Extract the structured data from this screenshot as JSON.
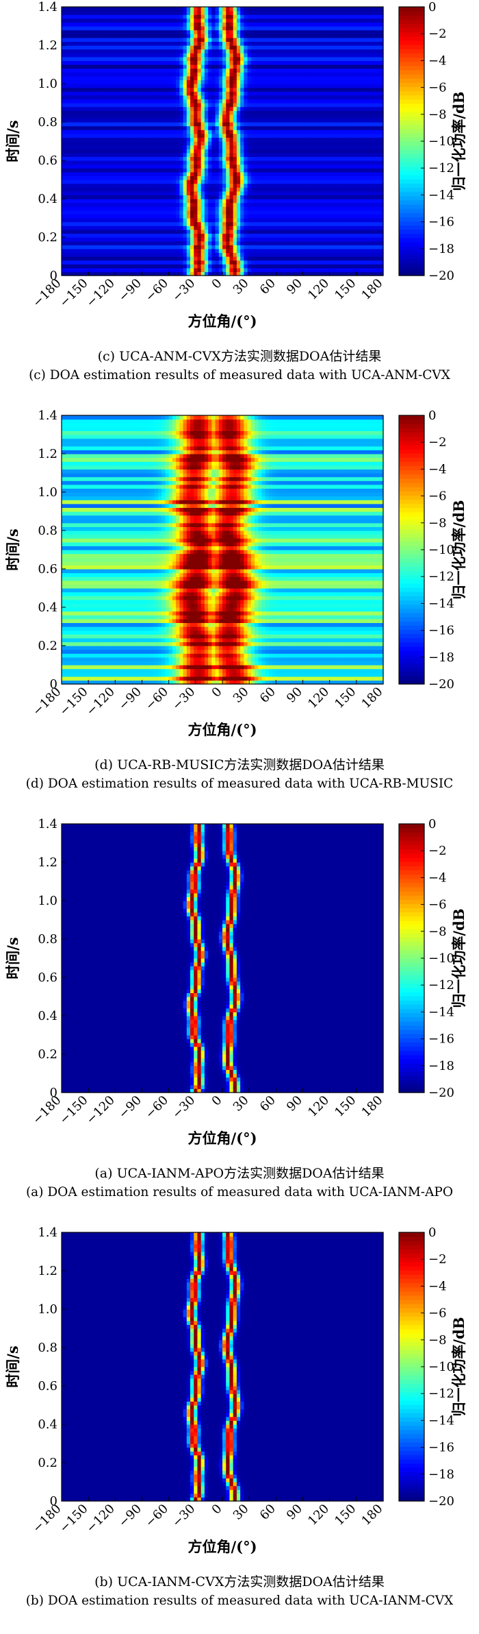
{
  "chart_data": [
    {
      "type": "heatmap",
      "caption_cn": "(c) UCA-ANM-CVX方法实测数据DOA估计结果",
      "caption_en": "(c) DOA estimation results of measured data with UCA-ANM-CVX",
      "xlabel": "方位角/(°)",
      "ylabel": "时间/s",
      "colorbar_label": "归一化功率/dB",
      "xlim": [
        -180,
        180
      ],
      "ylim": [
        0,
        1.4
      ],
      "zlim": [
        -20,
        0
      ],
      "x_ticks": [
        "−180",
        "−150",
        "−120",
        "−90",
        "−60",
        "−30",
        "0",
        "30",
        "60",
        "90",
        "120",
        "150",
        "180"
      ],
      "y_ticks": [
        "0",
        "0.2",
        "0.4",
        "0.6",
        "0.8",
        "1.0",
        "1.2",
        "1.4"
      ],
      "colorbar_ticks": [
        "0",
        "−2",
        "−4",
        "−6",
        "−8",
        "−10",
        "−12",
        "−14",
        "−16",
        "−18",
        "−20"
      ],
      "sources_deg": [
        -30,
        10
      ],
      "background_db": -18,
      "source_width_deg": 9,
      "band_level": 0.45
    },
    {
      "type": "heatmap",
      "caption_cn": "(d) UCA-RB-MUSIC方法实测数据DOA估计结果",
      "caption_en": "(d) DOA estimation results of measured data with UCA-RB-MUSIC",
      "xlabel": "方位角/(°)",
      "ylabel": "时间/s",
      "colorbar_label": "归一化功率/dB",
      "xlim": [
        -180,
        180
      ],
      "ylim": [
        0,
        1.4
      ],
      "zlim": [
        -20,
        0
      ],
      "x_ticks": [
        "−180",
        "−150",
        "−120",
        "−90",
        "−60",
        "−30",
        "0",
        "30",
        "60",
        "90",
        "120",
        "150",
        "180"
      ],
      "y_ticks": [
        "0",
        "0.2",
        "0.4",
        "0.6",
        "0.8",
        "1.0",
        "1.2",
        "1.4"
      ],
      "colorbar_ticks": [
        "0",
        "−2",
        "−4",
        "−6",
        "−8",
        "−10",
        "−12",
        "−14",
        "−16",
        "−18",
        "−20"
      ],
      "sources_deg": [
        -30,
        10
      ],
      "background_db": -12,
      "source_width_deg": 22,
      "band_level": 1.0
    },
    {
      "type": "heatmap",
      "caption_cn": "(a) UCA-IANM-APO方法实测数据DOA估计结果",
      "caption_en": "(a) DOA estimation results of measured data with UCA-IANM-APO",
      "xlabel": "方位角/(°)",
      "ylabel": "时间/s",
      "colorbar_label": "归一化功率/dB",
      "xlim": [
        -180,
        180
      ],
      "ylim": [
        0,
        1.4
      ],
      "zlim": [
        -20,
        0
      ],
      "x_ticks": [
        "−180",
        "−150",
        "−120",
        "−90",
        "−60",
        "−30",
        "0",
        "30",
        "60",
        "90",
        "120",
        "150",
        "180"
      ],
      "y_ticks": [
        "0",
        "0.2",
        "0.4",
        "0.6",
        "0.8",
        "1.0",
        "1.2",
        "1.4"
      ],
      "colorbar_ticks": [
        "0",
        "−2",
        "−4",
        "−6",
        "−8",
        "−10",
        "−12",
        "−14",
        "−16",
        "−18",
        "−20"
      ],
      "sources_deg": [
        -30,
        10
      ],
      "background_db": -19.5,
      "source_width_deg": 5,
      "band_level": 0.0
    },
    {
      "type": "heatmap",
      "caption_cn": "(b) UCA-IANM-CVX方法实测数据DOA估计结果",
      "caption_en": "(b) DOA estimation results of measured data with UCA-IANM-CVX",
      "xlabel": "方位角/(°)",
      "ylabel": "时间/s",
      "colorbar_label": "归一化功率/dB",
      "xlim": [
        -180,
        180
      ],
      "ylim": [
        0,
        1.4
      ],
      "zlim": [
        -20,
        0
      ],
      "x_ticks": [
        "−180",
        "−150",
        "−120",
        "−90",
        "−60",
        "−30",
        "0",
        "30",
        "60",
        "90",
        "120",
        "150",
        "180"
      ],
      "y_ticks": [
        "0",
        "0.2",
        "0.4",
        "0.6",
        "0.8",
        "1.0",
        "1.2",
        "1.4"
      ],
      "colorbar_ticks": [
        "0",
        "−2",
        "−4",
        "−6",
        "−8",
        "−10",
        "−12",
        "−14",
        "−16",
        "−18",
        "−20"
      ],
      "sources_deg": [
        -30,
        10
      ],
      "background_db": -19.5,
      "source_width_deg": 5,
      "band_level": 0.0
    }
  ]
}
